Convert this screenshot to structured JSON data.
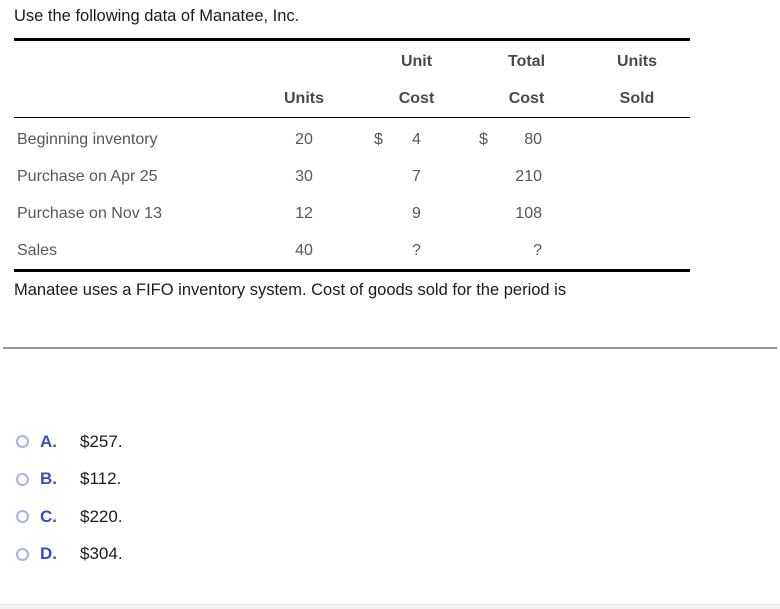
{
  "title": "Use the following data of Manatee, Inc.",
  "table": {
    "header_row1": {
      "unit": "Unit",
      "total": "Total",
      "units": "Units"
    },
    "header_row2": {
      "units": "Units",
      "cost1": "Cost",
      "cost2": "Cost",
      "sold": "Sold"
    },
    "rows": [
      {
        "label": "Beginning inventory",
        "units": "20",
        "dollar_unit": "$",
        "unit_cost": "4",
        "dollar_total": "$",
        "total_cost": "80",
        "units_sold": ""
      },
      {
        "label": "Purchase on Apr 25",
        "units": "30",
        "dollar_unit": "",
        "unit_cost": "7",
        "dollar_total": "",
        "total_cost": "210",
        "units_sold": ""
      },
      {
        "label": "Purchase on Nov 13",
        "units": "12",
        "dollar_unit": "",
        "unit_cost": "9",
        "dollar_total": "",
        "total_cost": "108",
        "units_sold": ""
      },
      {
        "label": "Sales",
        "units": "40",
        "dollar_unit": "",
        "unit_cost": "?",
        "dollar_total": "",
        "total_cost": "?",
        "units_sold": ""
      }
    ]
  },
  "question": "Manatee uses a FIFO inventory system. Cost of goods sold for the period is",
  "options": [
    {
      "letter": "A.",
      "value": "$257."
    },
    {
      "letter": "B.",
      "value": "$112."
    },
    {
      "letter": "C.",
      "value": "$220."
    },
    {
      "letter": "D.",
      "value": "$304."
    }
  ],
  "colors": {
    "accent_blue": "#3b4cc4",
    "radio_border": "#a9b2e8",
    "divider_gray": "#8e98a4"
  }
}
